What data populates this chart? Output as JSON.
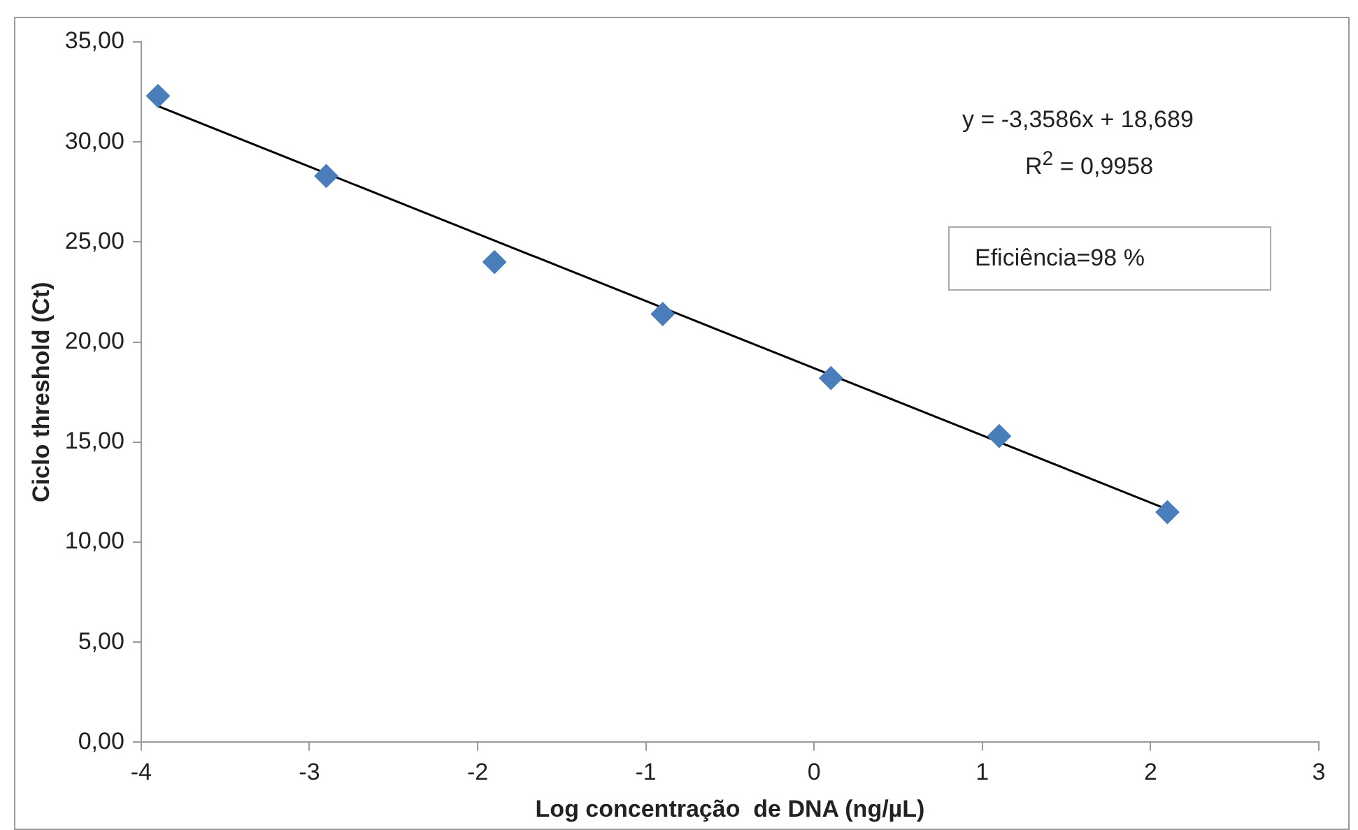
{
  "chart_data": {
    "type": "scatter",
    "xlabel": "Log concentração  de DNA (ng/µL)",
    "ylabel": "Ciclo threshold (Ct)",
    "xlim": [
      -4,
      3
    ],
    "xticks": [
      -4,
      -3,
      -2,
      -1,
      0,
      1,
      2,
      3
    ],
    "ylim": [
      0,
      35
    ],
    "yticks": [
      {
        "value": 0,
        "label": "0,00"
      },
      {
        "value": 5,
        "label": "5,00"
      },
      {
        "value": 10,
        "label": "10,00"
      },
      {
        "value": 15,
        "label": "15,00"
      },
      {
        "value": 20,
        "label": "20,00"
      },
      {
        "value": 25,
        "label": "25,00"
      },
      {
        "value": 30,
        "label": "30,00"
      },
      {
        "value": 35,
        "label": "35,00"
      }
    ],
    "grid": false,
    "legend": false,
    "series": [
      {
        "type": "scatter",
        "color": "#4a7ebb",
        "marker": "diamond",
        "x": [
          -3.9,
          -2.9,
          -1.9,
          -0.9,
          0.1,
          1.1,
          2.1
        ],
        "values": [
          32.3,
          28.3,
          24.0,
          21.4,
          18.2,
          15.3,
          11.5
        ]
      },
      {
        "type": "line",
        "color": "#000000",
        "marker": "none",
        "line_style": "solid",
        "x": [
          -3.9,
          2.1
        ],
        "values": [
          31.79,
          11.64
        ]
      }
    ],
    "annotations": [
      "y = -3,3586x + 18,689",
      "R$^{2}$ = 0,9958",
      "Eficiência=98 %"
    ]
  }
}
